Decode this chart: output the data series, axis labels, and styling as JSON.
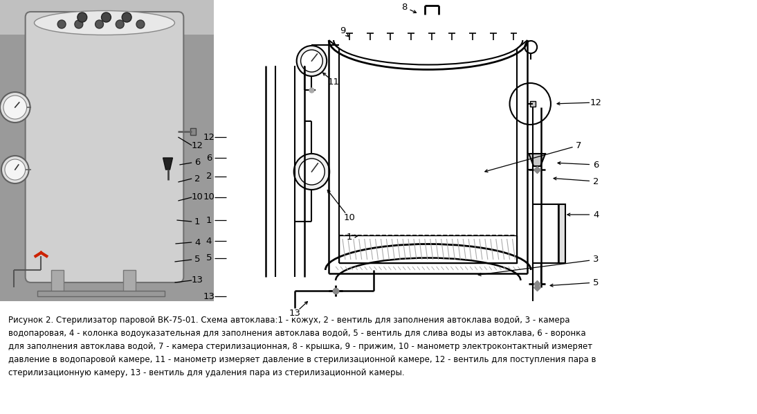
{
  "caption_line1": "Рисунок 2. Стерилизатор паровой ВК-75-01. Схема автоклава:1 - кожух, 2 - вентиль для заполнения автоклава водой, 3 - камера",
  "caption_line2": "водопаровая, 4 - колонка водоуказательная для заполнения автоклава водой, 5 - вентиль для слива воды из автоклава, 6 - воронка",
  "caption_line3": "для заполнения автоклава водой, 7 - камера стерилизационная, 8 - крышка, 9 - прижим, 10 - манометр электроконтактный измеряет",
  "caption_line4": "давление в водопаровой камере, 11 - манометр измеряет давление в стерилизационной камере, 12 - вентиль для поступления пара в",
  "caption_line5": "стерилизационную камеру, 13 - вентиль для удаления пара из стерилизационной камеры.",
  "bg_color": "#ffffff",
  "line_color": "#000000",
  "photo_bg": "#a0a0a0",
  "photo_cyl": "#b8b8b8",
  "photo_dark": "#888888"
}
